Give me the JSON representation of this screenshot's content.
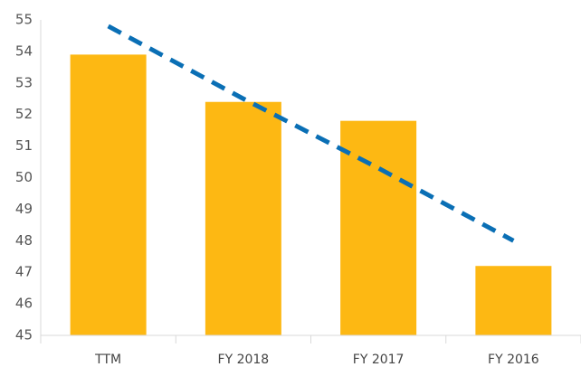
{
  "chart_data": {
    "type": "bar",
    "categories": [
      "TTM",
      "FY 2018",
      "FY 2017",
      "FY 2016"
    ],
    "values": [
      53.9,
      52.4,
      51.8,
      47.2
    ],
    "color": "#fdb813",
    "trend": {
      "values": [
        54.8,
        52.5,
        50.3,
        48.0
      ],
      "color": "#0a6fb5"
    },
    "ylim": [
      45,
      55
    ],
    "yticks": [
      45,
      46,
      47,
      48,
      49,
      50,
      51,
      52,
      53,
      54,
      55
    ],
    "grid": false
  }
}
